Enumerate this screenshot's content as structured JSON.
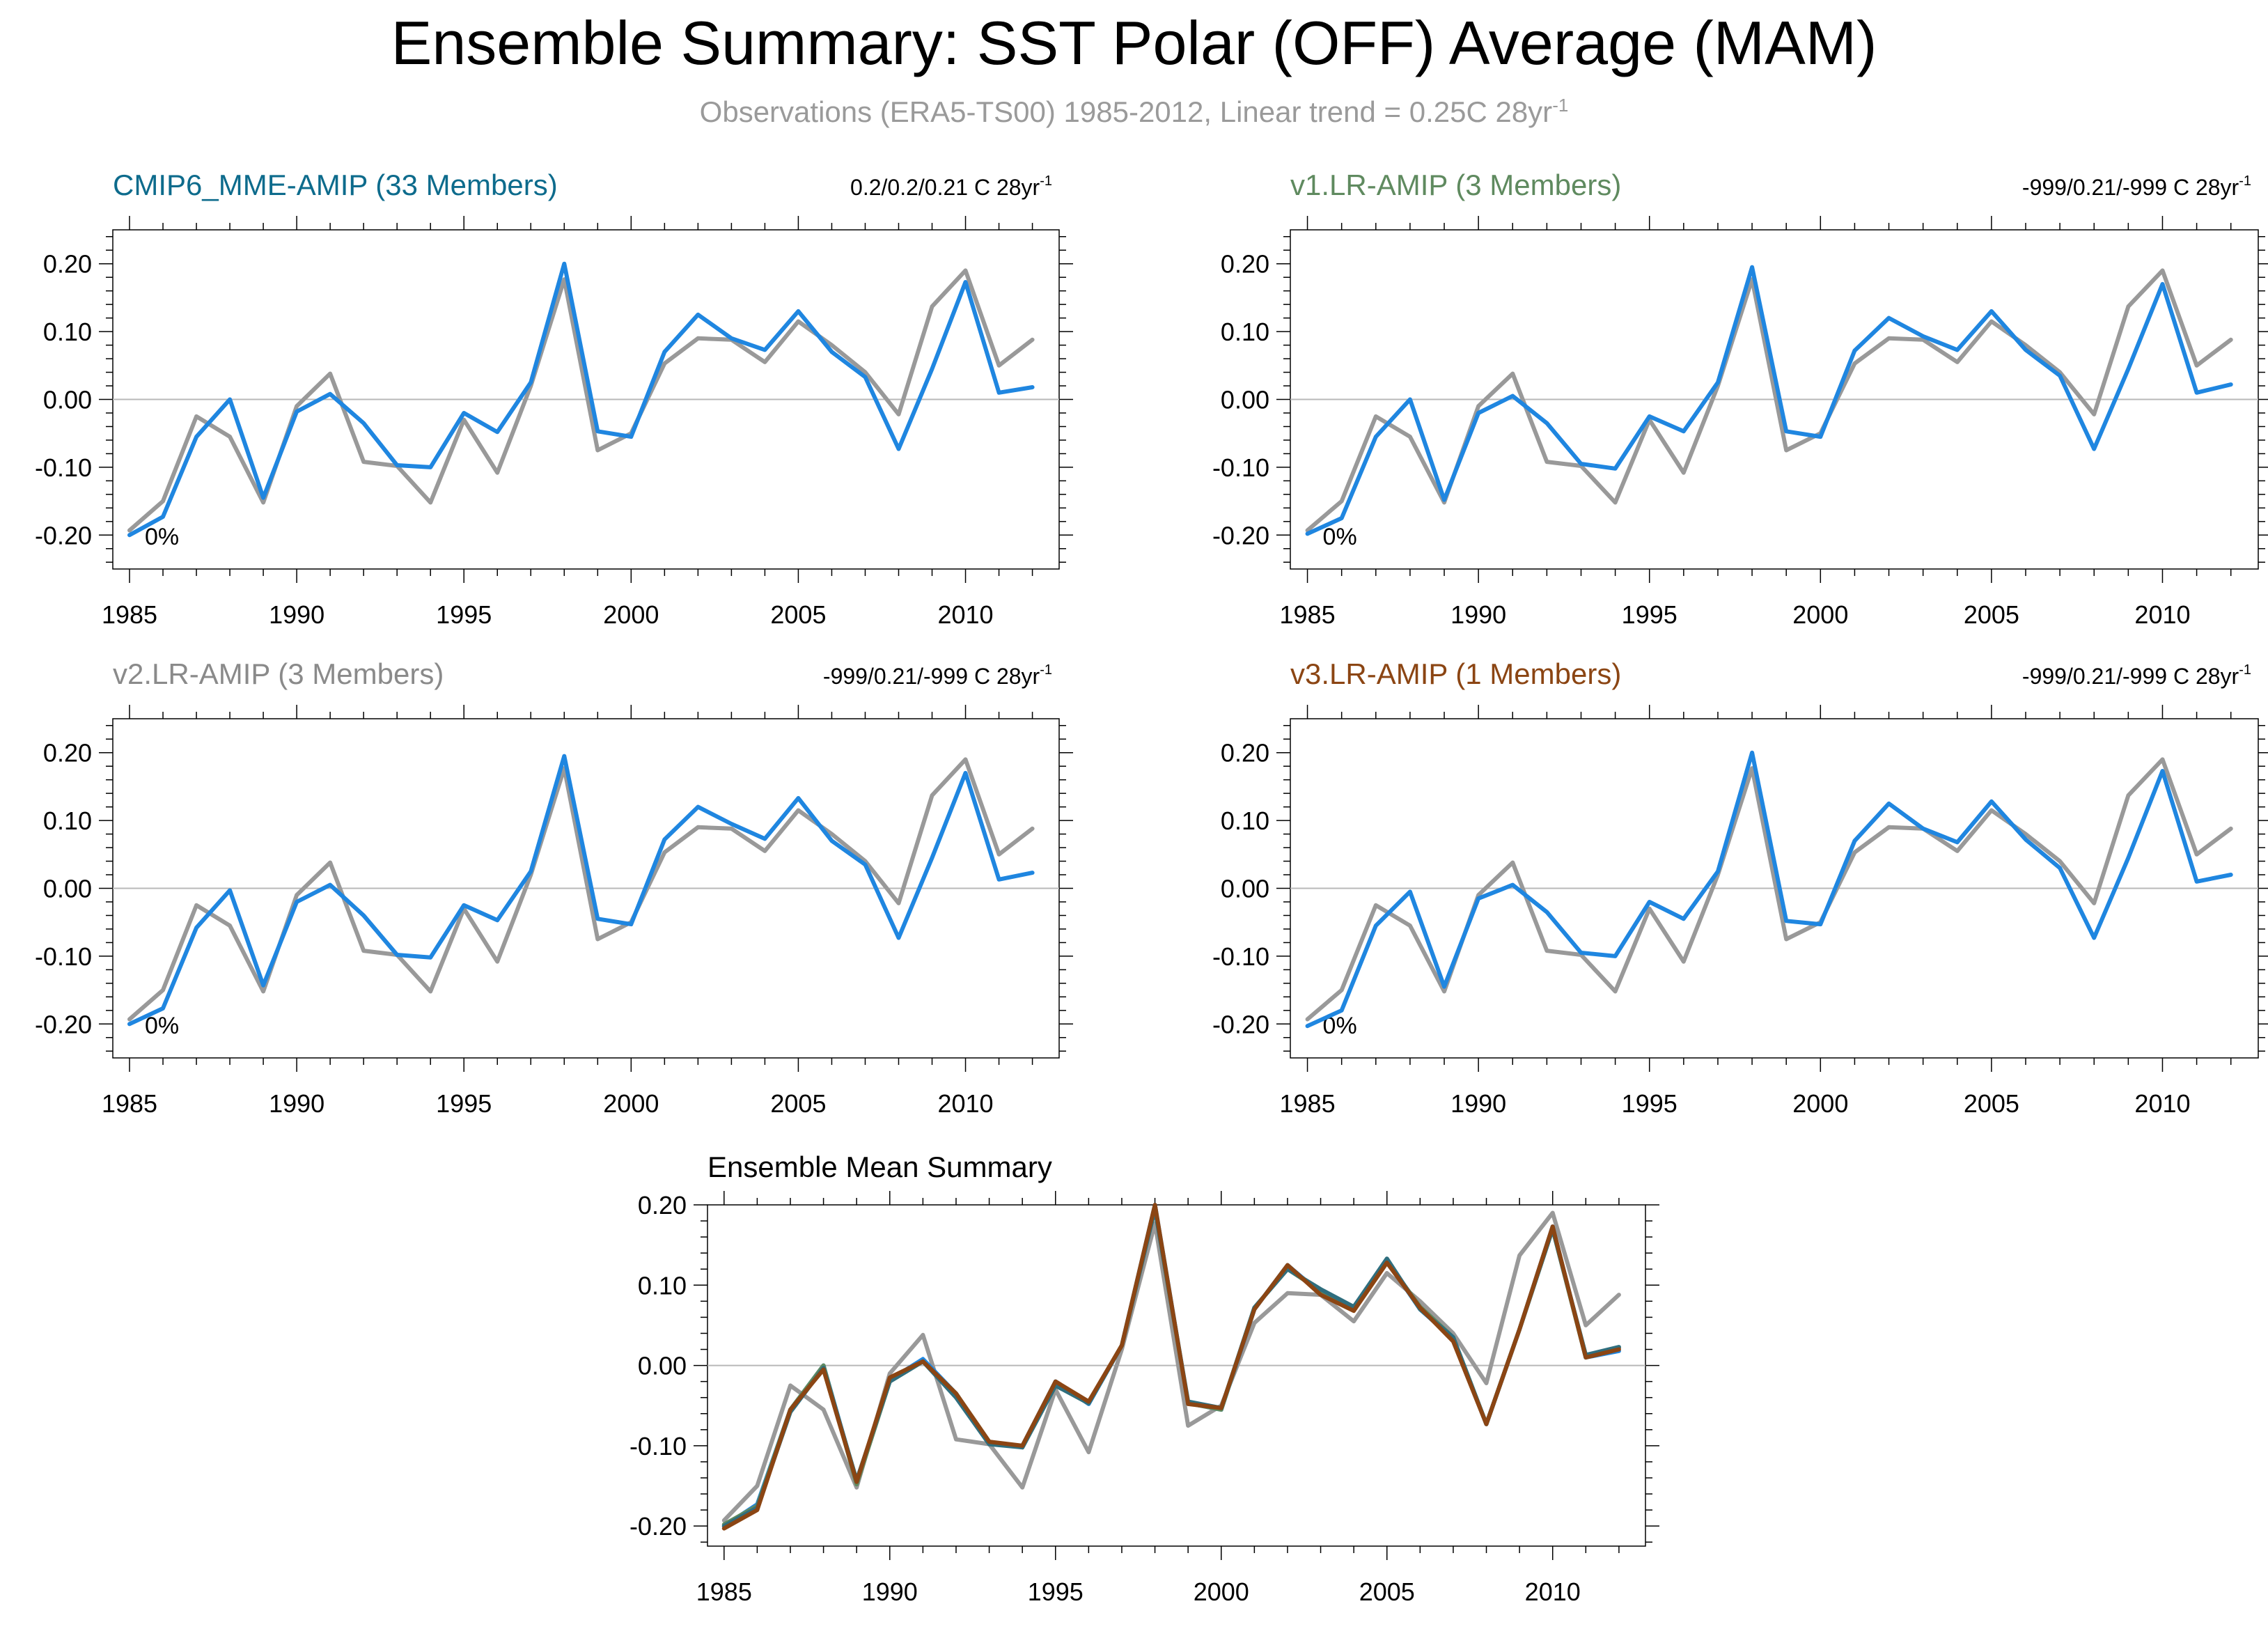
{
  "figure": {
    "title": "Ensemble Summary: SST Polar (OFF) Average (MAM)",
    "subtitle": "Observations (ERA5-TS00) 1985-2012, Linear trend = 0.25C 28yr",
    "subtitle_sup": "-1"
  },
  "colors": {
    "observations": "#999999",
    "model": "#1f86e0",
    "v3_brown": "#8b4513",
    "v1_teal_overlay": "#2f6e7e",
    "title_cmip6": "#0d6b8c",
    "title_v1": "#5f8a5f",
    "title_v2": "#8a8a8a",
    "title_v3": "#8b4513",
    "zero_line": "#b8b8b8"
  },
  "chart_data": [
    {
      "type": "line",
      "title": "CMIP6_MME-AMIP (33 Members)",
      "trend_text": "0.2/0.2/0.21 C 28yr",
      "trend_sup": "-1",
      "annotation": "0%",
      "ylim": [
        -0.25,
        0.25
      ],
      "xlim": [
        1984.5,
        2012.8
      ],
      "yticks": [
        "0.20",
        "0.10",
        "0.00",
        "-0.10",
        "-0.20"
      ],
      "xticks": [
        "1985",
        "1990",
        "1995",
        "2000",
        "2005",
        "2010"
      ],
      "grid": false,
      "x": [
        1985,
        1986,
        1987,
        1988,
        1989,
        1990,
        1991,
        1992,
        1993,
        1994,
        1995,
        1996,
        1997,
        1998,
        1999,
        2000,
        2001,
        2002,
        2003,
        2004,
        2005,
        2006,
        2007,
        2008,
        2009,
        2010,
        2011,
        2012
      ],
      "series": [
        {
          "name": "",
          "color": "#999999",
          "values": [
            -0.193,
            -0.15,
            -0.025,
            -0.055,
            -0.152,
            -0.01,
            0.038,
            -0.092,
            -0.098,
            -0.152,
            -0.03,
            -0.108,
            0.02,
            0.177,
            -0.075,
            -0.05,
            0.053,
            0.09,
            0.088,
            0.055,
            0.115,
            0.08,
            0.04,
            -0.022,
            0.137,
            0.19,
            0.05,
            0.088
          ]
        },
        {
          "name": "",
          "color": "#1f86e0",
          "values": [
            -0.2,
            -0.173,
            -0.055,
            0.0,
            -0.145,
            -0.018,
            0.008,
            -0.035,
            -0.097,
            -0.1,
            -0.02,
            -0.048,
            0.025,
            0.2,
            -0.047,
            -0.055,
            0.07,
            0.125,
            0.09,
            0.073,
            0.13,
            0.07,
            0.033,
            -0.073,
            0.045,
            0.173,
            0.01,
            0.018
          ]
        }
      ]
    },
    {
      "type": "line",
      "title": "v1.LR-AMIP (3 Members)",
      "trend_text": "-999/0.21/-999 C 28yr",
      "trend_sup": "-1",
      "annotation": "0%",
      "ylim": [
        -0.25,
        0.25
      ],
      "xlim": [
        1984.5,
        2012.8
      ],
      "yticks": [
        "0.20",
        "0.10",
        "0.00",
        "-0.10",
        "-0.20"
      ],
      "xticks": [
        "1985",
        "1990",
        "1995",
        "2000",
        "2005",
        "2010"
      ],
      "grid": false,
      "x": [
        1985,
        1986,
        1987,
        1988,
        1989,
        1990,
        1991,
        1992,
        1993,
        1994,
        1995,
        1996,
        1997,
        1998,
        1999,
        2000,
        2001,
        2002,
        2003,
        2004,
        2005,
        2006,
        2007,
        2008,
        2009,
        2010,
        2011,
        2012
      ],
      "series": [
        {
          "name": "",
          "color": "#999999",
          "values": [
            -0.193,
            -0.15,
            -0.025,
            -0.055,
            -0.152,
            -0.01,
            0.038,
            -0.092,
            -0.098,
            -0.152,
            -0.03,
            -0.108,
            0.02,
            0.177,
            -0.075,
            -0.05,
            0.053,
            0.09,
            0.088,
            0.055,
            0.115,
            0.08,
            0.04,
            -0.022,
            0.137,
            0.19,
            0.05,
            0.088
          ]
        },
        {
          "name": "",
          "color": "#1f86e0",
          "values": [
            -0.198,
            -0.175,
            -0.055,
            0.0,
            -0.148,
            -0.02,
            0.005,
            -0.035,
            -0.095,
            -0.102,
            -0.025,
            -0.047,
            0.025,
            0.195,
            -0.047,
            -0.055,
            0.072,
            0.12,
            0.093,
            0.073,
            0.13,
            0.073,
            0.035,
            -0.073,
            0.045,
            0.17,
            0.01,
            0.022
          ]
        }
      ]
    },
    {
      "type": "line",
      "title": "v2.LR-AMIP (3 Members)",
      "trend_text": "-999/0.21/-999 C 28yr",
      "trend_sup": "-1",
      "annotation": "0%",
      "ylim": [
        -0.25,
        0.25
      ],
      "xlim": [
        1984.5,
        2012.8
      ],
      "yticks": [
        "0.20",
        "0.10",
        "0.00",
        "-0.10",
        "-0.20"
      ],
      "xticks": [
        "1985",
        "1990",
        "1995",
        "2000",
        "2005",
        "2010"
      ],
      "grid": false,
      "x": [
        1985,
        1986,
        1987,
        1988,
        1989,
        1990,
        1991,
        1992,
        1993,
        1994,
        1995,
        1996,
        1997,
        1998,
        1999,
        2000,
        2001,
        2002,
        2003,
        2004,
        2005,
        2006,
        2007,
        2008,
        2009,
        2010,
        2011,
        2012
      ],
      "series": [
        {
          "name": "",
          "color": "#999999",
          "values": [
            -0.193,
            -0.15,
            -0.025,
            -0.055,
            -0.152,
            -0.01,
            0.038,
            -0.092,
            -0.098,
            -0.152,
            -0.03,
            -0.108,
            0.02,
            0.177,
            -0.075,
            -0.05,
            0.053,
            0.09,
            0.088,
            0.055,
            0.115,
            0.08,
            0.04,
            -0.022,
            0.137,
            0.19,
            0.05,
            0.088
          ]
        },
        {
          "name": "",
          "color": "#1f86e0",
          "values": [
            -0.2,
            -0.177,
            -0.058,
            -0.003,
            -0.143,
            -0.02,
            0.005,
            -0.04,
            -0.098,
            -0.102,
            -0.025,
            -0.047,
            0.025,
            0.195,
            -0.045,
            -0.053,
            0.072,
            0.12,
            0.095,
            0.073,
            0.133,
            0.07,
            0.035,
            -0.073,
            0.045,
            0.17,
            0.013,
            0.023
          ]
        }
      ]
    },
    {
      "type": "line",
      "title": "v3.LR-AMIP (1 Members)",
      "trend_text": "-999/0.21/-999 C 28yr",
      "trend_sup": "-1",
      "annotation": "0%",
      "ylim": [
        -0.25,
        0.25
      ],
      "xlim": [
        1984.5,
        2012.8
      ],
      "yticks": [
        "0.20",
        "0.10",
        "0.00",
        "-0.10",
        "-0.20"
      ],
      "xticks": [
        "1985",
        "1990",
        "1995",
        "2000",
        "2005",
        "2010"
      ],
      "grid": false,
      "x": [
        1985,
        1986,
        1987,
        1988,
        1989,
        1990,
        1991,
        1992,
        1993,
        1994,
        1995,
        1996,
        1997,
        1998,
        1999,
        2000,
        2001,
        2002,
        2003,
        2004,
        2005,
        2006,
        2007,
        2008,
        2009,
        2010,
        2011,
        2012
      ],
      "series": [
        {
          "name": "",
          "color": "#999999",
          "values": [
            -0.193,
            -0.15,
            -0.025,
            -0.055,
            -0.152,
            -0.01,
            0.038,
            -0.092,
            -0.098,
            -0.152,
            -0.03,
            -0.108,
            0.02,
            0.177,
            -0.075,
            -0.05,
            0.053,
            0.09,
            0.088,
            0.055,
            0.115,
            0.08,
            0.04,
            -0.022,
            0.137,
            0.19,
            0.05,
            0.088
          ]
        },
        {
          "name": "",
          "color": "#1f86e0",
          "values": [
            -0.203,
            -0.18,
            -0.055,
            -0.005,
            -0.145,
            -0.015,
            0.005,
            -0.035,
            -0.095,
            -0.1,
            -0.02,
            -0.045,
            0.025,
            0.2,
            -0.048,
            -0.053,
            0.07,
            0.125,
            0.088,
            0.068,
            0.128,
            0.072,
            0.03,
            -0.073,
            0.045,
            0.173,
            0.01,
            0.02
          ]
        }
      ]
    },
    {
      "type": "line",
      "title": "Ensemble Mean Summary",
      "ylim": [
        -0.225,
        0.2
      ],
      "xlim": [
        1984.5,
        2012.8
      ],
      "yticks": [
        "0.20",
        "0.10",
        "0.00",
        "-0.10",
        "-0.20"
      ],
      "xticks": [
        "1985",
        "1990",
        "1995",
        "2000",
        "2005",
        "2010"
      ],
      "grid": false,
      "x": [
        1985,
        1986,
        1987,
        1988,
        1989,
        1990,
        1991,
        1992,
        1993,
        1994,
        1995,
        1996,
        1997,
        1998,
        1999,
        2000,
        2001,
        2002,
        2003,
        2004,
        2005,
        2006,
        2007,
        2008,
        2009,
        2010,
        2011,
        2012
      ],
      "series": [
        {
          "name": "",
          "color": "#999999",
          "values": [
            -0.193,
            -0.15,
            -0.025,
            -0.055,
            -0.152,
            -0.01,
            0.038,
            -0.092,
            -0.098,
            -0.152,
            -0.03,
            -0.108,
            0.02,
            0.177,
            -0.075,
            -0.05,
            0.053,
            0.09,
            0.088,
            0.055,
            0.115,
            0.08,
            0.04,
            -0.022,
            0.137,
            0.19,
            0.05,
            0.088
          ]
        },
        {
          "name": "",
          "color": "#1f86e0",
          "values": [
            -0.2,
            -0.173,
            -0.055,
            0.0,
            -0.145,
            -0.018,
            0.008,
            -0.035,
            -0.097,
            -0.1,
            -0.02,
            -0.048,
            0.025,
            0.2,
            -0.047,
            -0.055,
            0.07,
            0.125,
            0.09,
            0.073,
            0.13,
            0.07,
            0.033,
            -0.073,
            0.045,
            0.173,
            0.01,
            0.018
          ]
        },
        {
          "name": "",
          "color": "#5f8a5f",
          "values": [
            -0.198,
            -0.175,
            -0.055,
            0.0,
            -0.148,
            -0.02,
            0.005,
            -0.035,
            -0.095,
            -0.102,
            -0.025,
            -0.047,
            0.025,
            0.195,
            -0.047,
            -0.055,
            0.072,
            0.12,
            0.093,
            0.073,
            0.13,
            0.073,
            0.035,
            -0.073,
            0.045,
            0.17,
            0.01,
            0.022
          ]
        },
        {
          "name": "",
          "color": "#2f6e7e",
          "values": [
            -0.2,
            -0.177,
            -0.058,
            -0.003,
            -0.143,
            -0.02,
            0.005,
            -0.04,
            -0.098,
            -0.102,
            -0.025,
            -0.047,
            0.025,
            0.195,
            -0.045,
            -0.053,
            0.072,
            0.12,
            0.095,
            0.073,
            0.133,
            0.07,
            0.035,
            -0.073,
            0.045,
            0.17,
            0.013,
            0.023
          ]
        },
        {
          "name": "",
          "color": "#8b4513",
          "values": [
            -0.203,
            -0.18,
            -0.055,
            -0.005,
            -0.145,
            -0.015,
            0.005,
            -0.035,
            -0.095,
            -0.1,
            -0.02,
            -0.045,
            0.025,
            0.2,
            -0.048,
            -0.053,
            0.07,
            0.125,
            0.088,
            0.068,
            0.128,
            0.072,
            0.03,
            -0.073,
            0.045,
            0.173,
            0.01,
            0.02
          ]
        }
      ]
    }
  ]
}
